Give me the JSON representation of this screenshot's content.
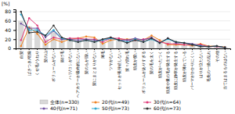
{
  "chart_data": {
    "type": "bar",
    "categories": [
      "白髪",
      "ぱさつき/乾燥",
      "くせ毛/うねり",
      "髪の山",
      "ボリュームがない",
      "抜け毛",
      "ハリ/コシがない",
      "ヘアカラーが最終的にない",
      "髪のもが固い",
      "髪にまとまりがない",
      "薄毛",
      "ツヤがない",
      "セットが長持続しない",
      "技々/切れ毛",
      "頭皮が償い",
      "ボリュームがありすぎる",
      "髪の毛を太く",
      "頭皮がべたつく",
      "頭皮や量の毛が発生する",
      "頭皮に静寧が発生する",
      "頭皮が薄れている",
      "パーマがかかりにくい",
      "はりが立たない",
      "毛先の一撮の乱れ",
      "その他",
      "当てはまるものはない"
    ],
    "series": [
      {
        "name": "全体(n=330)",
        "type": "bar",
        "color": "#d8d8d8",
        "values": [
          60,
          48,
          42,
          20,
          35,
          20,
          18,
          16,
          18,
          16,
          14,
          20,
          17,
          16,
          18,
          14,
          20,
          13,
          16,
          12,
          9,
          7,
          5,
          4,
          5,
          2
        ]
      },
      {
        "name": "20代(n=49)",
        "type": "line",
        "marker": "circle",
        "color": "#f08020",
        "values": [
          5,
          46,
          32,
          8,
          20,
          14,
          20,
          22,
          26,
          24,
          10,
          18,
          20,
          20,
          20,
          18,
          28,
          18,
          8,
          8,
          8,
          6,
          10,
          5,
          5,
          3
        ]
      },
      {
        "name": "30代(n=64)",
        "type": "line",
        "marker": "circle",
        "color": "#e03878",
        "values": [
          18,
          66,
          50,
          14,
          24,
          20,
          22,
          22,
          20,
          20,
          14,
          22,
          22,
          18,
          18,
          20,
          22,
          14,
          10,
          10,
          8,
          8,
          8,
          4,
          4,
          2
        ]
      },
      {
        "name": "40代(n=71)",
        "type": "line",
        "marker": "circle",
        "color": "#7050a0",
        "values": [
          54,
          44,
          44,
          24,
          38,
          20,
          20,
          18,
          20,
          18,
          18,
          24,
          18,
          18,
          22,
          18,
          24,
          12,
          22,
          12,
          12,
          10,
          6,
          4,
          5,
          2
        ]
      },
      {
        "name": "50代(n=73)",
        "type": "line",
        "marker": "circle",
        "color": "#30a8d0",
        "values": [
          74,
          40,
          40,
          28,
          40,
          22,
          18,
          14,
          18,
          14,
          18,
          22,
          18,
          14,
          20,
          14,
          20,
          12,
          20,
          14,
          12,
          8,
          5,
          4,
          5,
          2
        ]
      },
      {
        "name": "60代(n=73)",
        "type": "line",
        "marker": "circle",
        "color": "#303030",
        "values": [
          80,
          34,
          36,
          28,
          50,
          24,
          18,
          14,
          18,
          14,
          20,
          24,
          18,
          12,
          18,
          14,
          22,
          12,
          22,
          14,
          12,
          8,
          4,
          4,
          5,
          2
        ]
      }
    ],
    "ylabel": "[%]",
    "ylim": [
      0,
      85
    ],
    "yticks": [
      0,
      20,
      40,
      60,
      80
    ],
    "grid": true,
    "legend": "bottom"
  }
}
